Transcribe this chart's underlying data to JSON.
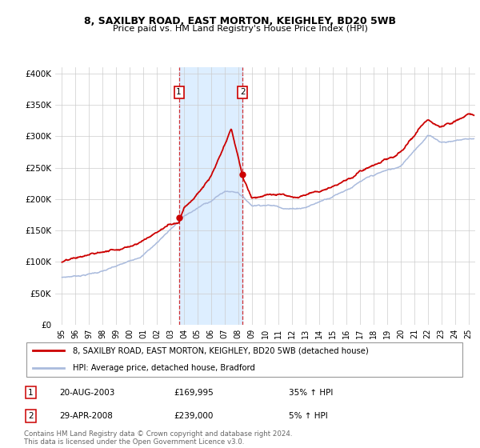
{
  "title1": "8, SAXILBY ROAD, EAST MORTON, KEIGHLEY, BD20 5WB",
  "title2": "Price paid vs. HM Land Registry's House Price Index (HPI)",
  "legend_line1": "8, SAXILBY ROAD, EAST MORTON, KEIGHLEY, BD20 5WB (detached house)",
  "legend_line2": "HPI: Average price, detached house, Bradford",
  "transaction1_date": "20-AUG-2003",
  "transaction1_price": "£169,995",
  "transaction1_hpi": "35% ↑ HPI",
  "transaction2_date": "29-APR-2008",
  "transaction2_price": "£239,000",
  "transaction2_hpi": "5% ↑ HPI",
  "footer": "Contains HM Land Registry data © Crown copyright and database right 2024.\nThis data is licensed under the Open Government Licence v3.0.",
  "transaction1_year": 2003.63,
  "transaction1_value": 169995,
  "transaction2_year": 2008.33,
  "transaction2_value": 239000,
  "hpi_color": "#aabbdd",
  "price_color": "#cc0000",
  "shade_color": "#ddeeff",
  "ylim": [
    0,
    410000
  ],
  "xlim_start": 1994.5,
  "xlim_end": 2025.5,
  "yticks": [
    0,
    50000,
    100000,
    150000,
    200000,
    250000,
    300000,
    350000,
    400000
  ],
  "ytick_labels": [
    "£0",
    "£50K",
    "£100K",
    "£150K",
    "£200K",
    "£250K",
    "£300K",
    "£350K",
    "£400K"
  ],
  "xticks": [
    1995,
    1996,
    1997,
    1998,
    1999,
    2000,
    2001,
    2002,
    2003,
    2004,
    2005,
    2006,
    2007,
    2008,
    2009,
    2010,
    2011,
    2012,
    2013,
    2014,
    2015,
    2016,
    2017,
    2018,
    2019,
    2020,
    2021,
    2022,
    2023,
    2024,
    2025
  ],
  "hpi_anchors_years": [
    1995,
    1996,
    1997,
    1998,
    1999,
    2000,
    2001,
    2002,
    2003,
    2004,
    2005,
    2006,
    2007,
    2008,
    2009,
    2010,
    2011,
    2012,
    2013,
    2014,
    2015,
    2016,
    2017,
    2018,
    2019,
    2020,
    2021,
    2022,
    2023,
    2024,
    2025
  ],
  "hpi_anchors_vals": [
    75000,
    78000,
    82000,
    87000,
    93000,
    100000,
    113000,
    132000,
    155000,
    175000,
    188000,
    200000,
    215000,
    215000,
    195000,
    198000,
    196000,
    194000,
    198000,
    207000,
    218000,
    230000,
    242000,
    250000,
    257000,
    262000,
    290000,
    315000,
    305000,
    308000,
    312000
  ],
  "prop_anchors_years": [
    1995,
    1996,
    1997,
    1998,
    1999,
    2000,
    2001,
    2002,
    2003,
    2003.63,
    2004,
    2005,
    2006,
    2007,
    2007.5,
    2008,
    2008.33,
    2009,
    2010,
    2011,
    2012,
    2013,
    2014,
    2015,
    2016,
    2017,
    2018,
    2019,
    2020,
    2021,
    2022,
    2023,
    2024,
    2025
  ],
  "prop_anchors_vals": [
    100000,
    103000,
    108000,
    112000,
    118000,
    126000,
    138000,
    152000,
    165000,
    169995,
    195000,
    218000,
    245000,
    290000,
    315000,
    270000,
    239000,
    205000,
    212000,
    210000,
    208000,
    213000,
    220000,
    233000,
    245000,
    258000,
    267000,
    275000,
    283000,
    310000,
    335000,
    322000,
    328000,
    335000
  ]
}
